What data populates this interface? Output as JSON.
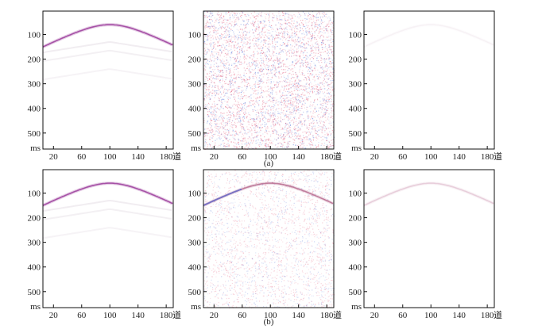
{
  "captions": {
    "row_a": "(a)",
    "row_b": "(b)"
  },
  "axes": {
    "y_ticks": [
      "100",
      "200",
      "300",
      "400",
      "500"
    ],
    "y_unit": "ms",
    "x_ticks": [
      "20",
      "60",
      "100",
      "140",
      "180"
    ],
    "x_unit": "道"
  },
  "panels": [
    {
      "id": "a-1",
      "row": "a",
      "col": 1,
      "noise": 0.0,
      "event": 1.0,
      "color": "#9a3b9a",
      "ghost": true
    },
    {
      "id": "a-2",
      "row": "a",
      "col": 2,
      "noise": 1.0,
      "event": 0.0,
      "color": "#b04060",
      "ghost": false
    },
    {
      "id": "a-3",
      "row": "a",
      "col": 3,
      "noise": 0.0,
      "event": 0.08,
      "color": "#b07090",
      "ghost": false
    },
    {
      "id": "b-1",
      "row": "b",
      "col": 1,
      "noise": 0.0,
      "event": 1.0,
      "color": "#9a3b9a",
      "ghost": true
    },
    {
      "id": "b-2",
      "row": "b",
      "col": 2,
      "noise": 0.45,
      "event": 0.7,
      "color": "#a03a6a",
      "ghost": false
    },
    {
      "id": "b-3",
      "row": "b",
      "col": 3,
      "noise": 0.0,
      "event": 0.35,
      "color": "#c07a9a",
      "ghost": false
    }
  ],
  "colors": {
    "frame": "#111111",
    "noise_red": "#e25a7a",
    "noise_blue": "#5a78d8"
  }
}
